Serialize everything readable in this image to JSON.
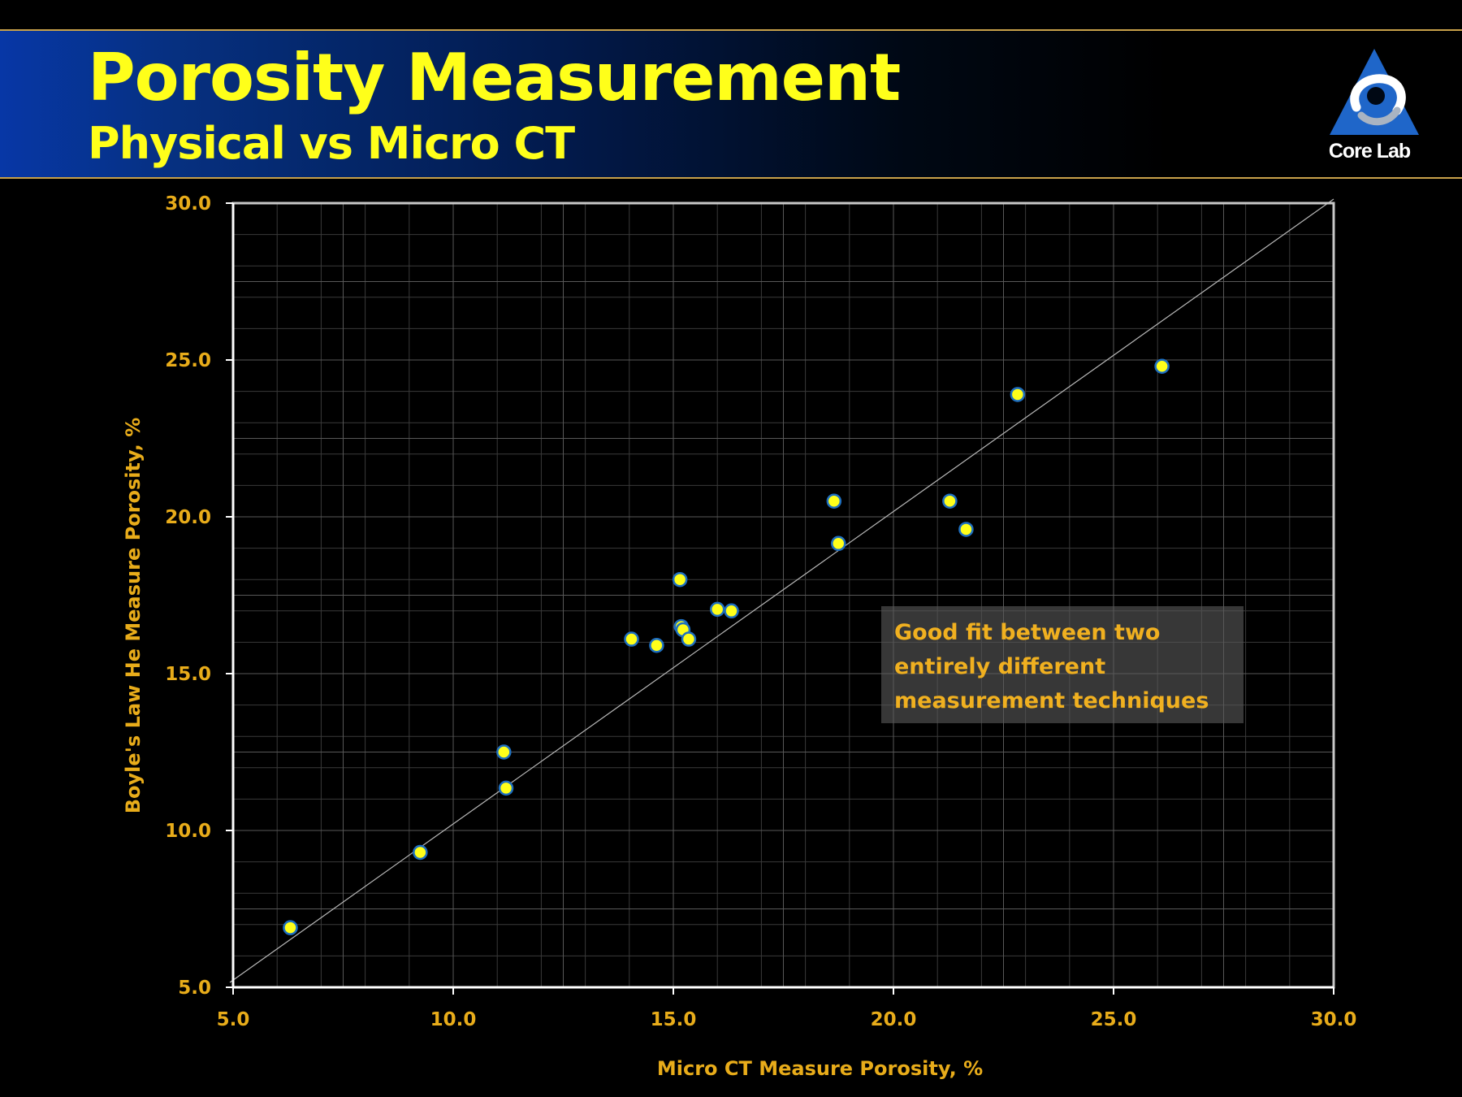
{
  "slide": {
    "title": "Porosity Measurement",
    "subtitle": "Physical vs Micro CT",
    "logo_text": "Core Lab",
    "logo_icon": "core-lab-triangle-logo",
    "title_color": "#ffff1a",
    "header_color": "#0737a6",
    "accent_color": "#e8ac1a"
  },
  "note": {
    "lines": [
      "Good fit between two",
      "entirely different",
      "measurement techniques"
    ]
  },
  "chart_data": {
    "type": "scatter",
    "title": "",
    "xlabel": "Micro CT Measure Porosity, %",
    "ylabel": "Boyle's Law He Measure Porosity, %",
    "xlim": [
      5.0,
      30.0
    ],
    "ylim": [
      5.0,
      30.0
    ],
    "x_ticks": [
      "5.0",
      "10.0",
      "15.0",
      "20.0",
      "25.0",
      "30.0"
    ],
    "y_ticks": [
      "5.0",
      "10.0",
      "15.0",
      "20.0",
      "25.0",
      "30.0"
    ],
    "grid": true,
    "minor_grid_step": 1.0,
    "reference_line": {
      "name": "1:1 line",
      "from": [
        5.0,
        5.0
      ],
      "to": [
        30.0,
        30.0
      ]
    },
    "marker_color": "#ffff1a",
    "marker_edge_color": "#1e6fc0",
    "series": [
      {
        "name": "Samples",
        "x": [
          6.3,
          9.25,
          11.15,
          11.2,
          14.05,
          14.62,
          15.15,
          15.18,
          15.22,
          15.35,
          16.0,
          16.32,
          18.65,
          18.75,
          21.28,
          21.65,
          22.82,
          26.1
        ],
        "y": [
          6.9,
          9.3,
          12.5,
          11.35,
          16.1,
          15.9,
          18.0,
          16.5,
          16.4,
          16.1,
          17.05,
          17.0,
          20.5,
          19.15,
          20.5,
          19.6,
          23.9,
          24.8
        ]
      }
    ]
  }
}
